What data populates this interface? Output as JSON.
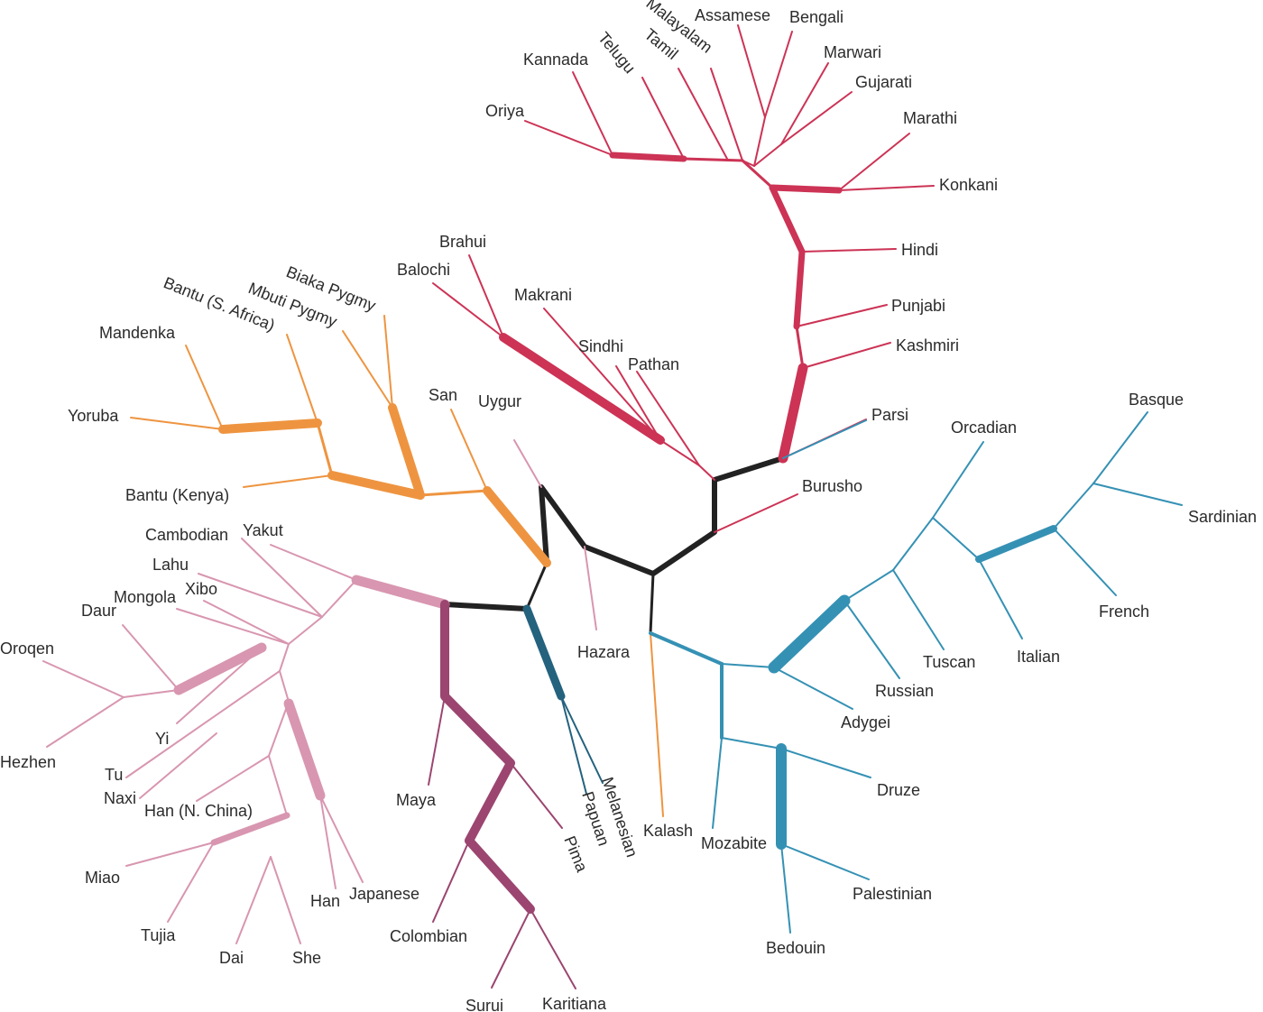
{
  "colors": {
    "core": "#222222",
    "south_asia": "#cc3355",
    "africa": "#ee9440",
    "east_asia": "#d896b0",
    "america": "#9b4570",
    "oceania": "#24627e",
    "europe_middle_east": "#3591b4",
    "kalash": "#ee9440",
    "uygur_hazara": "#d896b0"
  },
  "labels": {
    "oriya": "Oriya",
    "kannada": "Kannada",
    "telugu": "Telugu",
    "tamil": "Tamil",
    "malayalam": "Malayalam",
    "assamese": "Assamese",
    "bengali": "Bengali",
    "marwari": "Marwari",
    "gujarati": "Gujarati",
    "marathi": "Marathi",
    "konkani": "Konkani",
    "hindi": "Hindi",
    "punjabi": "Punjabi",
    "kashmiri": "Kashmiri",
    "parsi": "Parsi",
    "burusho": "Burusho",
    "brahui": "Brahui",
    "balochi": "Balochi",
    "makrani": "Makrani",
    "sindhi": "Sindhi",
    "pathan": "Pathan",
    "biaka_pygmy": "Biaka Pygmy",
    "mbuti_pygmy": "Mbuti Pygmy",
    "bantu_s_africa": "Bantu (S. Africa)",
    "mandenka": "Mandenka",
    "yoruba": "Yoruba",
    "bantu_kenya": "Bantu (Kenya)",
    "san": "San",
    "uygur": "Uygur",
    "hazara": "Hazara",
    "cambodian": "Cambodian",
    "yakut": "Yakut",
    "lahu": "Lahu",
    "xibo": "Xibo",
    "mongola": "Mongola",
    "daur": "Daur",
    "oroqen": "Oroqen",
    "hezhen": "Hezhen",
    "yi": "Yi",
    "tu": "Tu",
    "naxi": "Naxi",
    "han_n_china": "Han (N. China)",
    "miao": "Miao",
    "tujia": "Tujia",
    "dai": "Dai",
    "she": "She",
    "han": "Han",
    "japanese": "Japanese",
    "maya": "Maya",
    "pima": "Pima",
    "colombian": "Colombian",
    "surui": "Surui",
    "karitiana": "Karitiana",
    "papuan": "Papuan",
    "melanesian": "Melanesian",
    "kalash": "Kalash",
    "mozabite": "Mozabite",
    "druze": "Druze",
    "palestinian": "Palestinian",
    "bedouin": "Bedouin",
    "adygei": "Adygei",
    "russian": "Russian",
    "tuscan": "Tuscan",
    "italian": "Italian",
    "orcadian": "Orcadian",
    "basque": "Basque",
    "sardinian": "Sardinian",
    "french": "French"
  }
}
